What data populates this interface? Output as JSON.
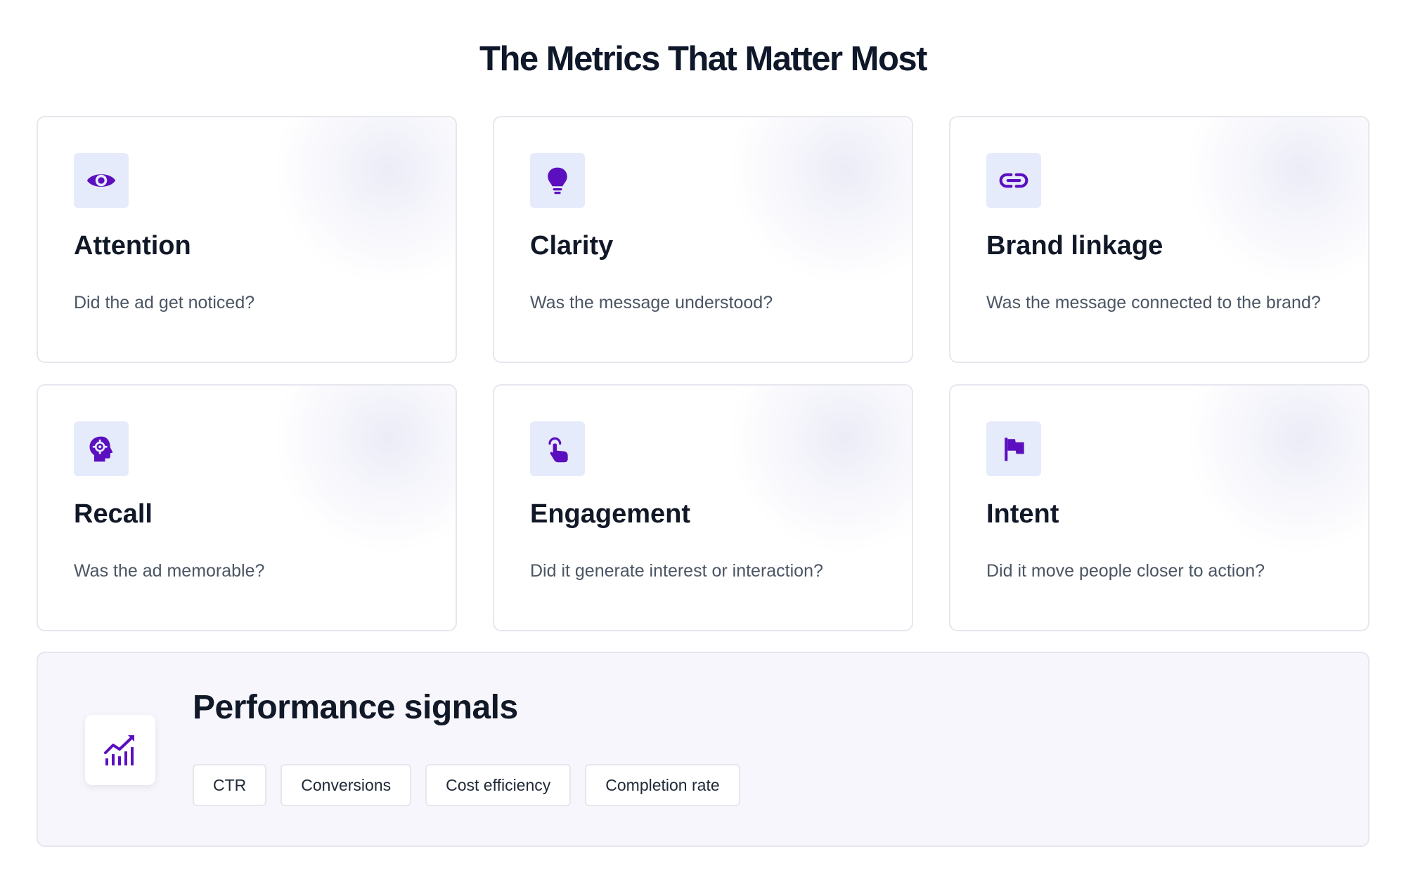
{
  "header": {
    "title": "The Metrics That Matter Most"
  },
  "colors": {
    "accent": "#5b0fbe",
    "icon_bg": "#e6ebfb",
    "card_border": "#e6e7ee",
    "panel_bg": "#f6f6fc"
  },
  "metrics": [
    {
      "icon": "eye-icon",
      "title": "Attention",
      "description": "Did the ad get noticed?"
    },
    {
      "icon": "lightbulb-icon",
      "title": "Clarity",
      "description": "Was the message understood?"
    },
    {
      "icon": "link-icon",
      "title": "Brand linkage",
      "description": "Was the message connected to the brand?"
    },
    {
      "icon": "head-gear-icon",
      "title": "Recall",
      "description": "Was the ad memorable?"
    },
    {
      "icon": "pointer-hand-icon",
      "title": "Engagement",
      "description": "Did it generate interest or interaction?"
    },
    {
      "icon": "flag-icon",
      "title": "Intent",
      "description": "Did it move people closer to action?"
    }
  ],
  "performance": {
    "icon": "chart-trend-icon",
    "title": "Performance signals",
    "chips": [
      "CTR",
      "Conversions",
      "Cost efficiency",
      "Completion rate"
    ]
  }
}
